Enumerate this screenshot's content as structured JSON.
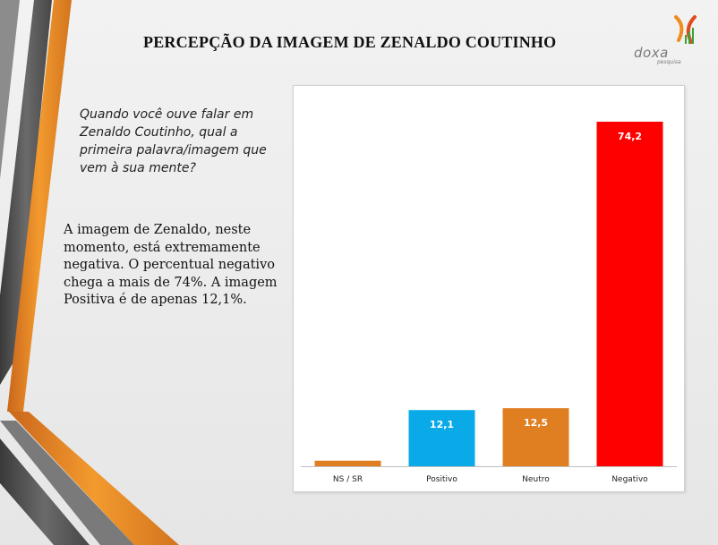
{
  "slide": {
    "title": "PERCEPÇÃO DA IMAGEM DE ZENALDO COUTINHO",
    "question": "Quando você ouve falar em Zenaldo Coutinho, qual a primeira palavra/imagem que vem à sua mente?",
    "analysis": "A imagem de Zenaldo, neste momento, está extremamente negativa. O percentual negativo chega a mais de 74%. A imagem Positiva é de apenas 12,1%.",
    "logo": {
      "name": "doxa",
      "subtitle": "pesquisa"
    }
  },
  "chart_data": {
    "type": "bar",
    "categories": [
      "NS / SR",
      "Positivo",
      "Neutro",
      "Negativo"
    ],
    "values": [
      1.2,
      12.1,
      12.5,
      74.2
    ],
    "data_labels": [
      "",
      "12,1",
      "12,5",
      "74,2"
    ],
    "colors": [
      "#e07f22",
      "#0aa9e8",
      "#e07f22",
      "#ff0000"
    ],
    "title": "",
    "xlabel": "",
    "ylabel": "",
    "ylim": [
      0,
      85
    ],
    "grid": false,
    "legend": "none"
  }
}
